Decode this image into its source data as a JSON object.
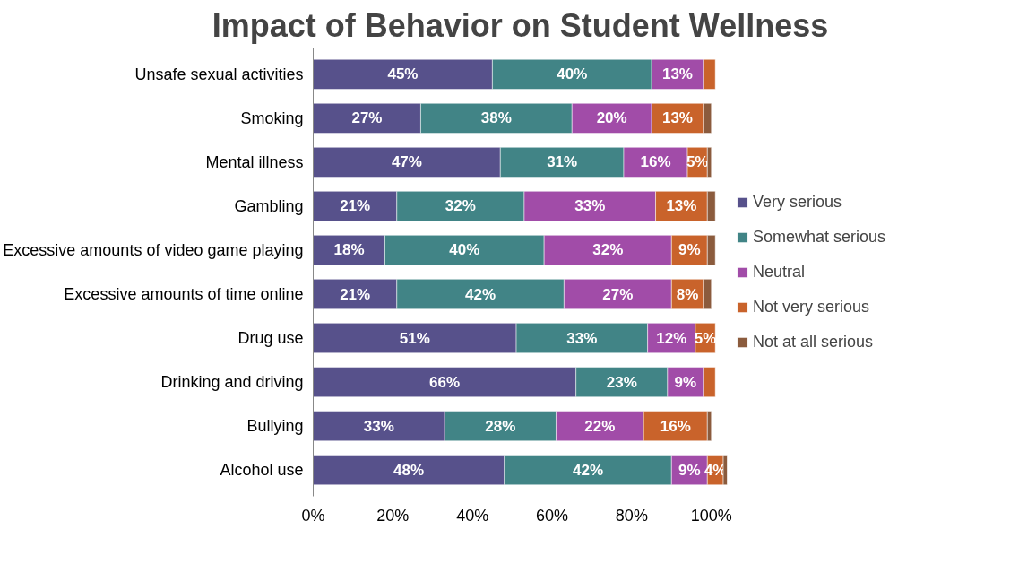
{
  "chart_data": {
    "type": "bar",
    "orientation": "horizontal",
    "stacked": true,
    "title": "Impact of Behavior on Student Wellness",
    "categories": [
      "Unsafe sexual activities",
      "Smoking",
      "Mental illness",
      "Gambling",
      "Excessive amounts of video game playing",
      "Excessive amounts of time online",
      "Drug use",
      "Drinking and driving",
      "Bullying",
      "Alcohol use"
    ],
    "series": [
      {
        "name": "Very serious",
        "color": "#57518b",
        "values": [
          45,
          27,
          47,
          21,
          18,
          21,
          51,
          66,
          33,
          48
        ],
        "value_labels": [
          "45%",
          "27%",
          "47%",
          "21%",
          "18%",
          "21%",
          "51%",
          "66%",
          "33%",
          "48%"
        ]
      },
      {
        "name": "Somewhat serious",
        "color": "#418486",
        "values": [
          40,
          38,
          31,
          32,
          40,
          42,
          33,
          23,
          28,
          42
        ],
        "value_labels": [
          "40%",
          "38%",
          "31%",
          "32%",
          "40%",
          "42%",
          "33%",
          "23%",
          "28%",
          "42%"
        ]
      },
      {
        "name": "Neutral",
        "color": "#a14ca8",
        "values": [
          13,
          20,
          16,
          33,
          32,
          27,
          12,
          9,
          22,
          9
        ],
        "value_labels": [
          "13%",
          "20%",
          "16%",
          "33%",
          "32%",
          "27%",
          "12%",
          "9%",
          "22%",
          "9%"
        ]
      },
      {
        "name": "Not very serious",
        "color": "#c9632b",
        "values": [
          3,
          13,
          5,
          13,
          9,
          8,
          5,
          3,
          16,
          4
        ],
        "value_labels": [
          null,
          "13%",
          "5%",
          "13%",
          "9%",
          "8%",
          "5%",
          null,
          "16%",
          "4%"
        ]
      },
      {
        "name": "Not at all serious",
        "color": "#8b5b3d",
        "values": [
          null,
          2,
          1,
          2,
          2,
          2,
          null,
          null,
          1,
          1
        ],
        "value_labels": [
          null,
          null,
          null,
          null,
          null,
          null,
          null,
          null,
          null,
          null
        ]
      }
    ],
    "xlim": [
      0,
      104
    ],
    "xticks": [
      {
        "value": 0,
        "label": "0%"
      },
      {
        "value": 20,
        "label": "20%"
      },
      {
        "value": 40,
        "label": "40%"
      },
      {
        "value": 60,
        "label": "60%"
      },
      {
        "value": 80,
        "label": "80%"
      },
      {
        "value": 100,
        "label": "100%"
      }
    ],
    "grid": false,
    "legend": "right"
  }
}
